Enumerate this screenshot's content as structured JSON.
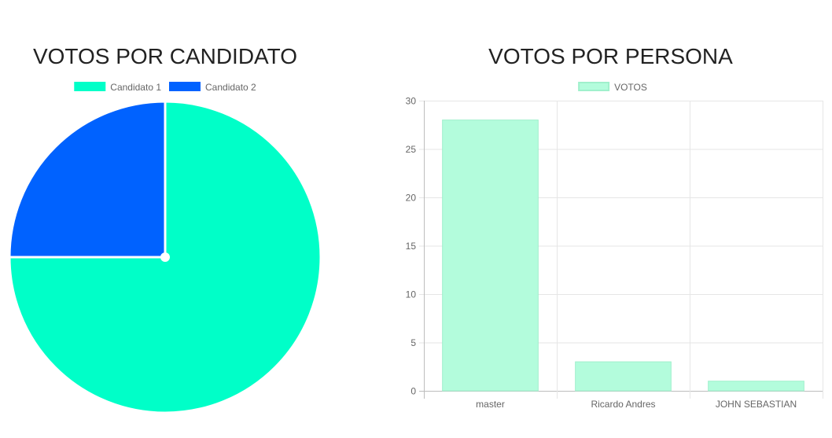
{
  "chart_data": [
    {
      "type": "pie",
      "title": "VOTOS POR CANDIDATO",
      "legend_position": "top",
      "categories": [
        "Candidato 1",
        "Candidato  2"
      ],
      "values": [
        75,
        25
      ],
      "colors": [
        "#00ffc8",
        "#0062ff"
      ]
    },
    {
      "type": "bar",
      "title": "VOTOS POR PERSONA",
      "legend_position": "top",
      "categories": [
        "master",
        "Ricardo Andres",
        "JOHN SEBASTIAN"
      ],
      "series": [
        {
          "name": "VOTOS",
          "values": [
            28,
            3,
            1
          ],
          "color": "#b3fcdc",
          "border_color": "#a0f0cc"
        }
      ],
      "ylim": [
        0,
        30
      ],
      "yticks": [
        0,
        5,
        10,
        15,
        20,
        25,
        30
      ],
      "grid": true
    }
  ]
}
